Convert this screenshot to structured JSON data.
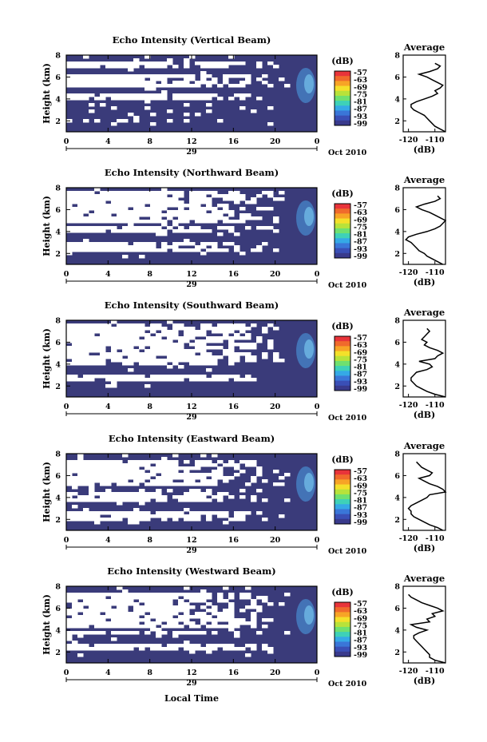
{
  "figure": {
    "xlabel": "Local Time",
    "date_label": "Oct 2010",
    "day_label": "29",
    "time_ticks": [
      "0",
      "4",
      "8",
      "12",
      "16",
      "20",
      "0"
    ],
    "height_ticks": [
      "2",
      "4",
      "6",
      "8"
    ],
    "ylabel": "Height (km)",
    "colorbar_unit": "(dB)",
    "colorbar_ticks": [
      "-57",
      "-63",
      "-69",
      "-75",
      "-81",
      "-87",
      "-93",
      "-99"
    ],
    "colorbar_colors": [
      "#e8343a",
      "#f06a2c",
      "#f7a426",
      "#f4e02a",
      "#b8e23a",
      "#6fe070",
      "#3ed1b8",
      "#35a9e6",
      "#3a76d8",
      "#3a4fb6",
      "#393a8c"
    ],
    "average_title": "Average",
    "average_xticks": [
      "-120",
      "-110"
    ],
    "average_xunit": "(dB)",
    "average_yticks": [
      "2",
      "4",
      "6",
      "8"
    ],
    "colors": {
      "background": "#3a3b7a",
      "missing": "#ffffff",
      "bright": "#4aa3e8"
    }
  },
  "chart_data": [
    {
      "type": "heatmap",
      "title": "Echo Intensity (Vertical Beam)",
      "x_range_hours": [
        0,
        24
      ],
      "y_range_km": [
        1,
        8
      ],
      "colorbar_range_db": [
        -99,
        -57
      ],
      "profile": {
        "type": "line",
        "title": "Average",
        "xlabel": "(dB)",
        "ylabel": "Height (km)",
        "xlim": [
          -122,
          -106
        ],
        "ylim": [
          1,
          8
        ],
        "x": [
          -106,
          -108,
          -110,
          -111,
          -112,
          -113,
          -114,
          -116,
          -118,
          -119,
          -119,
          -117,
          -114,
          -111,
          -109,
          -110,
          -108,
          -107,
          -109,
          -111,
          -113,
          -116,
          -112,
          -109,
          -108,
          -110
        ],
        "y": [
          1.0,
          1.25,
          1.5,
          1.75,
          2.0,
          2.25,
          2.5,
          2.75,
          3.0,
          3.25,
          3.5,
          3.75,
          4.0,
          4.25,
          4.5,
          4.75,
          5.0,
          5.25,
          5.5,
          5.75,
          6.0,
          6.25,
          6.5,
          6.75,
          7.0,
          7.25
        ]
      }
    },
    {
      "type": "heatmap",
      "title": "Echo Intensity (Northward Beam)",
      "x_range_hours": [
        0,
        24
      ],
      "y_range_km": [
        1,
        8
      ],
      "colorbar_range_db": [
        -99,
        -57
      ],
      "profile": {
        "type": "line",
        "title": "Average",
        "xlabel": "(dB)",
        "ylabel": "Height (km)",
        "xlim": [
          -122,
          -106
        ],
        "ylim": [
          1,
          8
        ],
        "x": [
          -107,
          -109,
          -111,
          -113,
          -114,
          -116,
          -117,
          -118,
          -119,
          -121,
          -120,
          -117,
          -113,
          -110,
          -108,
          -107,
          -106,
          -108,
          -110,
          -112,
          -115,
          -117,
          -114,
          -110,
          -108,
          -109
        ],
        "y": [
          1.0,
          1.25,
          1.5,
          1.75,
          2.0,
          2.25,
          2.5,
          2.75,
          3.0,
          3.25,
          3.5,
          3.75,
          4.0,
          4.25,
          4.5,
          4.75,
          5.0,
          5.25,
          5.5,
          5.75,
          6.0,
          6.25,
          6.5,
          6.75,
          7.0,
          7.25
        ]
      }
    },
    {
      "type": "heatmap",
      "title": "Echo Intensity (Southward Beam)",
      "x_range_hours": [
        0,
        24
      ],
      "y_range_km": [
        1,
        8
      ],
      "colorbar_range_db": [
        -99,
        -57
      ],
      "profile": {
        "type": "line",
        "title": "Average",
        "xlabel": "(dB)",
        "ylabel": "Height (km)",
        "xlim": [
          -122,
          -106
        ],
        "ylim": [
          1,
          8
        ],
        "x": [
          -106,
          -110,
          -113,
          -115,
          -117,
          -118,
          -119,
          -119,
          -118,
          -117,
          -113,
          -111,
          -112,
          -116,
          -110,
          -109,
          -107,
          -109,
          -112,
          -114,
          -113,
          -115,
          -114,
          -113,
          -112,
          -113
        ],
        "y": [
          1.0,
          1.25,
          1.5,
          1.75,
          2.0,
          2.25,
          2.5,
          2.75,
          3.0,
          3.25,
          3.5,
          3.75,
          4.0,
          4.25,
          4.5,
          4.75,
          5.0,
          5.25,
          5.5,
          5.75,
          6.0,
          6.25,
          6.5,
          6.75,
          7.0,
          7.25
        ]
      }
    },
    {
      "type": "heatmap",
      "title": "Echo Intensity (Eastward Beam)",
      "x_range_hours": [
        0,
        24
      ],
      "y_range_km": [
        1,
        8
      ],
      "colorbar_range_db": [
        -99,
        -57
      ],
      "profile": {
        "type": "line",
        "title": "Average",
        "xlabel": "(dB)",
        "ylabel": "Height (km)",
        "xlim": [
          -122,
          -106
        ],
        "ylim": [
          1,
          8
        ],
        "x": [
          -107,
          -109,
          -112,
          -114,
          -116,
          -118,
          -119,
          -119,
          -120,
          -119,
          -117,
          -115,
          -113,
          -112,
          -106,
          -107,
          -109,
          -112,
          -114,
          -116,
          -112,
          -111,
          -113,
          -115,
          -116,
          -117
        ],
        "y": [
          1.0,
          1.25,
          1.5,
          1.75,
          2.0,
          2.25,
          2.5,
          2.75,
          3.0,
          3.25,
          3.5,
          3.75,
          4.0,
          4.25,
          4.5,
          4.75,
          5.0,
          5.25,
          5.5,
          5.75,
          6.0,
          6.25,
          6.5,
          6.75,
          7.0,
          7.25
        ]
      }
    },
    {
      "type": "heatmap",
      "title": "Echo Intensity (Westward Beam)",
      "x_range_hours": [
        0,
        24
      ],
      "y_range_km": [
        1,
        8
      ],
      "colorbar_range_db": [
        -99,
        -57
      ],
      "profile": {
        "type": "line",
        "title": "Average",
        "xlabel": "(dB)",
        "ylabel": "Height (km)",
        "xlim": [
          -122,
          -106
        ],
        "ylim": [
          1,
          8
        ],
        "x": [
          -106,
          -110,
          -112,
          -112,
          -113,
          -114,
          -115,
          -116,
          -117,
          -118,
          -118,
          -116,
          -113,
          -117,
          -119,
          -112,
          -113,
          -110,
          -111,
          -107,
          -109,
          -112,
          -115,
          -117,
          -119,
          -120
        ],
        "y": [
          1.0,
          1.25,
          1.5,
          1.75,
          2.0,
          2.25,
          2.5,
          2.75,
          3.0,
          3.25,
          3.5,
          3.75,
          4.0,
          4.25,
          4.5,
          4.75,
          5.0,
          5.25,
          5.5,
          5.75,
          6.0,
          6.25,
          6.5,
          6.75,
          7.0,
          7.25
        ]
      }
    }
  ]
}
